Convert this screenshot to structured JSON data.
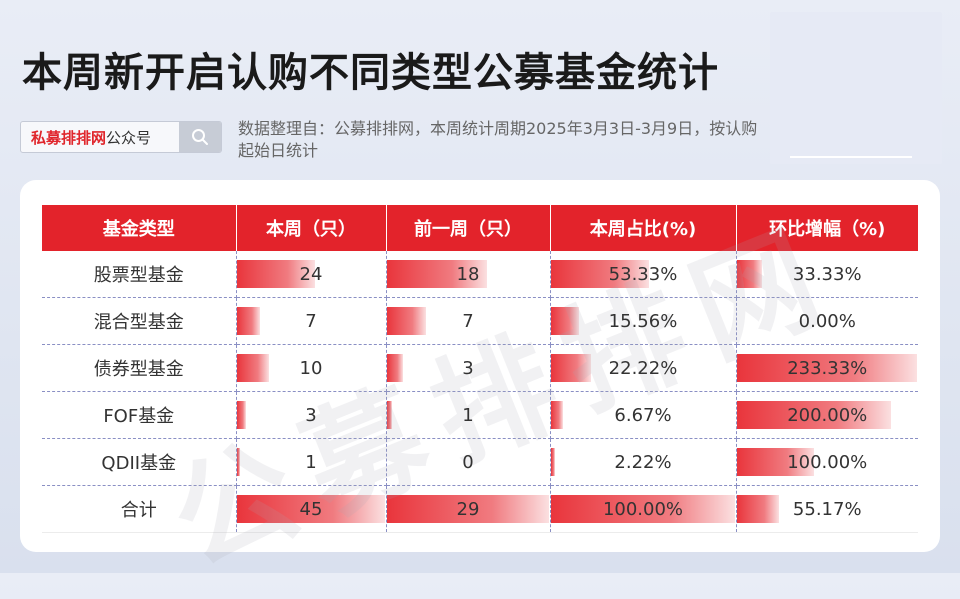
{
  "title": "本周新开启认购不同类型公募基金统计",
  "search": {
    "brand": "私募排排网",
    "suffix": "公众号",
    "icon": "search-icon"
  },
  "description": "数据整理自：公募排排网，本周统计周期2025年3月3日-3月9日，按认购起始日统计",
  "watermark": "公募排排网",
  "colors": {
    "header": "#e3232b",
    "bar": "#e9353c"
  },
  "chart_data": {
    "type": "table",
    "columns": [
      "基金类型",
      "本周（只）",
      "前一周（只）",
      "本周占比(%)",
      "环比增幅（%)"
    ],
    "rows": [
      {
        "type": "股票型基金",
        "this_week": "24",
        "prev_week": "18",
        "share": "53.33%",
        "change": "33.33%",
        "this_week_v": 24,
        "prev_week_v": 18,
        "share_v": 53.33,
        "change_v": 33.33
      },
      {
        "type": "混合型基金",
        "this_week": "7",
        "prev_week": "7",
        "share": "15.56%",
        "change": "0.00%",
        "this_week_v": 7,
        "prev_week_v": 7,
        "share_v": 15.56,
        "change_v": 0
      },
      {
        "type": "债券型基金",
        "this_week": "10",
        "prev_week": "3",
        "share": "22.22%",
        "change": "233.33%",
        "this_week_v": 10,
        "prev_week_v": 3,
        "share_v": 22.22,
        "change_v": 233.33
      },
      {
        "type": "FOF基金",
        "this_week": "3",
        "prev_week": "1",
        "share": "6.67%",
        "change": "200.00%",
        "this_week_v": 3,
        "prev_week_v": 1,
        "share_v": 6.67,
        "change_v": 200
      },
      {
        "type": "QDII基金",
        "this_week": "1",
        "prev_week": "0",
        "share": "2.22%",
        "change": "100.00%",
        "this_week_v": 1,
        "prev_week_v": 0,
        "share_v": 2.22,
        "change_v": 100
      },
      {
        "type": "合计",
        "this_week": "45",
        "prev_week": "29",
        "share": "100.00%",
        "change": "55.17%",
        "this_week_v": 45,
        "prev_week_v": 29,
        "share_v": 100,
        "change_v": 55.17
      }
    ]
  }
}
